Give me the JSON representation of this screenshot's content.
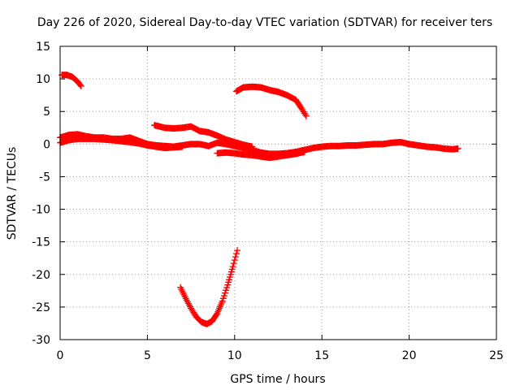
{
  "chart_data": {
    "type": "scatter",
    "title": "Day 226 of 2020, Sidereal Day-to-day VTEC variation (SDTVAR) for receiver ters",
    "xlabel": "GPS time / hours",
    "ylabel": "SDTVAR / TECUs",
    "xlim": [
      0,
      25
    ],
    "ylim": [
      -30,
      15
    ],
    "xticks": [
      0,
      5,
      10,
      15,
      20,
      25
    ],
    "yticks": [
      15,
      10,
      5,
      0,
      -5,
      -10,
      -15,
      -20,
      -25,
      -30
    ],
    "grid": true,
    "marker": "plus",
    "color": "#ff0000",
    "series": [
      {
        "name": "track-1",
        "points": [
          [
            0.1,
            10.6
          ],
          [
            0.4,
            10.6
          ],
          [
            0.7,
            10.3
          ],
          [
            1.0,
            9.6
          ],
          [
            1.2,
            8.9
          ]
        ]
      },
      {
        "name": "track-2",
        "points": [
          [
            0.0,
            1.0
          ],
          [
            0.5,
            1.4
          ],
          [
            1.0,
            1.5
          ],
          [
            1.5,
            1.2
          ],
          [
            2.0,
            1.0
          ],
          [
            2.5,
            1.0
          ],
          [
            3.0,
            0.8
          ],
          [
            3.5,
            0.8
          ],
          [
            4.0,
            1.0
          ],
          [
            4.5,
            0.5
          ],
          [
            5.0,
            0.0
          ],
          [
            5.5,
            -0.2
          ],
          [
            6.0,
            -0.3
          ],
          [
            6.5,
            -0.4
          ],
          [
            7.0,
            -0.2
          ],
          [
            7.5,
            0.0
          ],
          [
            8.0,
            0.0
          ],
          [
            8.5,
            -0.3
          ],
          [
            9.0,
            0.2
          ],
          [
            9.5,
            0.0
          ],
          [
            10.0,
            -0.3
          ],
          [
            10.5,
            -0.6
          ],
          [
            11.0,
            -0.9
          ],
          [
            11.5,
            -1.3
          ],
          [
            12.0,
            -1.5
          ],
          [
            12.5,
            -1.5
          ],
          [
            13.0,
            -1.4
          ],
          [
            13.5,
            -1.2
          ],
          [
            14.0,
            -0.9
          ],
          [
            14.5,
            -0.6
          ],
          [
            15.0,
            -0.4
          ],
          [
            15.5,
            -0.3
          ],
          [
            16.0,
            -0.3
          ],
          [
            16.5,
            -0.2
          ],
          [
            17.0,
            -0.2
          ],
          [
            17.5,
            -0.1
          ],
          [
            18.0,
            0.0
          ],
          [
            18.5,
            0.0
          ],
          [
            19.0,
            0.2
          ],
          [
            19.5,
            0.3
          ],
          [
            20.0,
            0.0
          ],
          [
            20.5,
            -0.2
          ],
          [
            21.0,
            -0.4
          ],
          [
            21.5,
            -0.5
          ],
          [
            22.0,
            -0.7
          ],
          [
            22.5,
            -0.8
          ],
          [
            22.8,
            -0.7
          ]
        ]
      },
      {
        "name": "track-3",
        "points": [
          [
            0.0,
            0.2
          ],
          [
            0.5,
            0.6
          ],
          [
            1.0,
            0.8
          ],
          [
            2.0,
            0.8
          ],
          [
            3.0,
            0.6
          ],
          [
            4.0,
            0.3
          ],
          [
            4.5,
            0.1
          ],
          [
            5.0,
            -0.2
          ],
          [
            5.5,
            -0.4
          ],
          [
            6.0,
            -0.6
          ],
          [
            6.5,
            -0.5
          ],
          [
            7.0,
            -0.4
          ]
        ]
      },
      {
        "name": "track-4",
        "points": [
          [
            5.4,
            2.9
          ],
          [
            6.0,
            2.5
          ],
          [
            6.5,
            2.4
          ],
          [
            7.0,
            2.5
          ],
          [
            7.5,
            2.7
          ],
          [
            8.0,
            2.0
          ],
          [
            8.5,
            1.8
          ],
          [
            9.0,
            1.3
          ],
          [
            9.5,
            0.7
          ],
          [
            10.0,
            0.3
          ],
          [
            10.5,
            -0.1
          ],
          [
            11.0,
            -0.4
          ]
        ]
      },
      {
        "name": "track-5",
        "points": [
          [
            9.0,
            -1.4
          ],
          [
            9.5,
            -1.3
          ],
          [
            10.0,
            -1.4
          ],
          [
            10.5,
            -1.6
          ],
          [
            11.0,
            -1.7
          ],
          [
            11.5,
            -1.9
          ],
          [
            12.0,
            -2.1
          ],
          [
            12.5,
            -1.9
          ],
          [
            13.0,
            -1.7
          ],
          [
            13.5,
            -1.5
          ],
          [
            14.0,
            -1.2
          ]
        ]
      },
      {
        "name": "track-6",
        "points": [
          [
            10.1,
            8.1
          ],
          [
            10.5,
            8.7
          ],
          [
            11.0,
            8.8
          ],
          [
            11.5,
            8.7
          ],
          [
            12.0,
            8.3
          ],
          [
            12.5,
            8.0
          ],
          [
            13.0,
            7.5
          ],
          [
            13.5,
            6.8
          ],
          [
            13.8,
            5.6
          ],
          [
            14.1,
            4.3
          ]
        ]
      },
      {
        "name": "track-7",
        "points": [
          [
            6.9,
            -22.0
          ],
          [
            7.2,
            -23.7
          ],
          [
            7.5,
            -25.2
          ],
          [
            7.8,
            -26.5
          ],
          [
            8.1,
            -27.3
          ],
          [
            8.4,
            -27.6
          ],
          [
            8.7,
            -27.2
          ],
          [
            9.0,
            -26.0
          ],
          [
            9.3,
            -24.1
          ],
          [
            9.6,
            -21.6
          ],
          [
            9.9,
            -18.8
          ],
          [
            10.15,
            -16.3
          ]
        ]
      }
    ]
  }
}
